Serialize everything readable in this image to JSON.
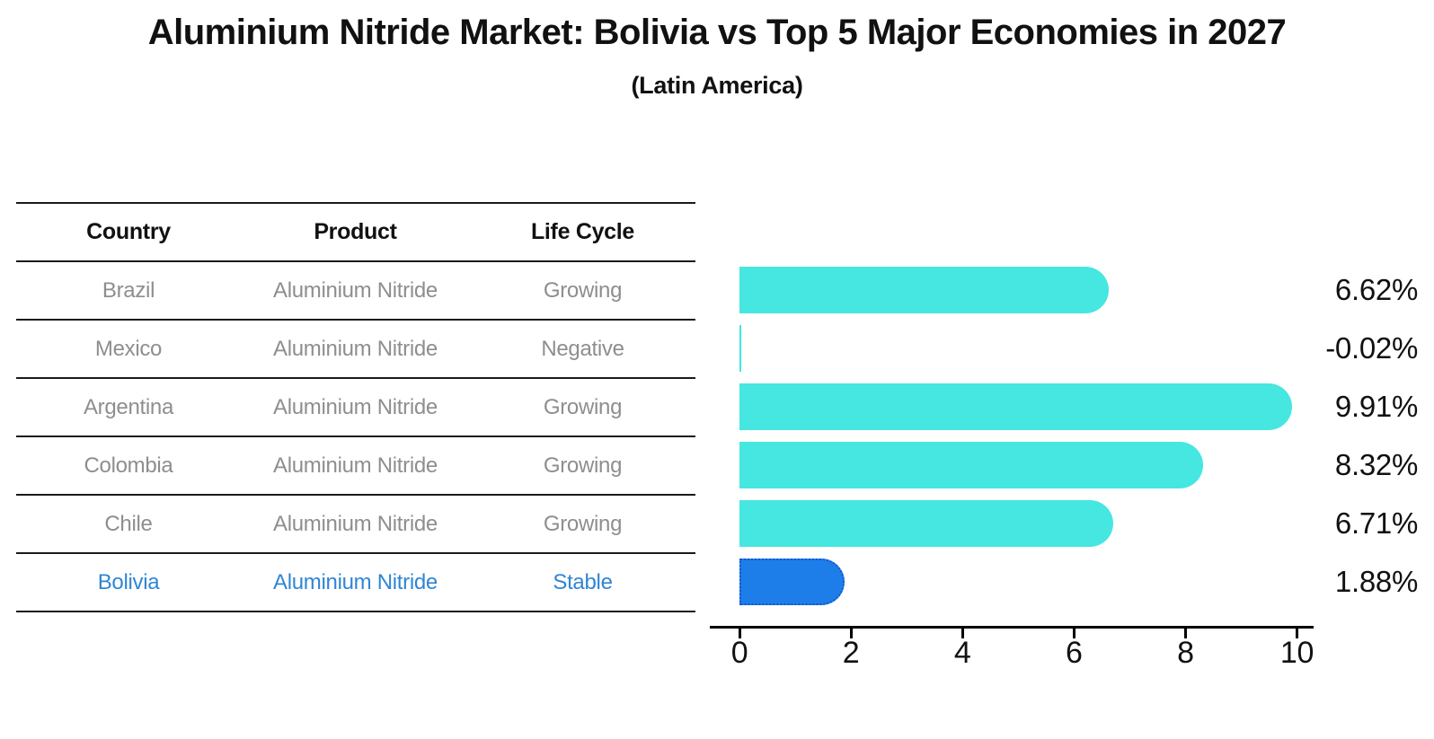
{
  "title": "Aluminium Nitride Market: Bolivia vs Top 5 Major Economies in 2027",
  "subtitle": "(Latin America)",
  "table": {
    "headers": [
      "Country",
      "Product",
      "Life Cycle"
    ],
    "rows": [
      {
        "country": "Brazil",
        "product": "Aluminium Nitride",
        "life_cycle": "Growing",
        "highlight": false
      },
      {
        "country": "Mexico",
        "product": "Aluminium Nitride",
        "life_cycle": "Negative",
        "highlight": false
      },
      {
        "country": "Argentina",
        "product": "Aluminium Nitride",
        "life_cycle": "Growing",
        "highlight": false
      },
      {
        "country": "Colombia",
        "product": "Aluminium Nitride",
        "life_cycle": "Growing",
        "highlight": false
      },
      {
        "country": "Chile",
        "product": "Aluminium Nitride",
        "life_cycle": "Growing",
        "highlight": false
      },
      {
        "country": "Bolivia",
        "product": "Aluminium Nitride",
        "life_cycle": "Stable",
        "highlight": true
      }
    ]
  },
  "chart_data": {
    "type": "bar",
    "orientation": "horizontal",
    "categories": [
      "Brazil",
      "Mexico",
      "Argentina",
      "Colombia",
      "Chile",
      "Bolivia"
    ],
    "values": [
      6.62,
      -0.02,
      9.91,
      8.32,
      6.71,
      1.88
    ],
    "value_labels": [
      "6.62%",
      "-0.02%",
      "9.91%",
      "8.32%",
      "6.71%",
      "1.88%"
    ],
    "highlight_category": "Bolivia",
    "xlim": [
      0,
      10
    ],
    "x_ticks": [
      "0",
      "2",
      "4",
      "6",
      "8",
      "10"
    ],
    "grid": false,
    "legend": false
  },
  "colors": {
    "bar": "#45E7E0",
    "highlight_bar": "#1E7EE9",
    "highlight_border": "#1257CE",
    "highlight_text": "#2F86D5",
    "table_text": "#8E8E8E",
    "header_text": "#111111",
    "axis": "#000000",
    "value_label": "#111111"
  }
}
